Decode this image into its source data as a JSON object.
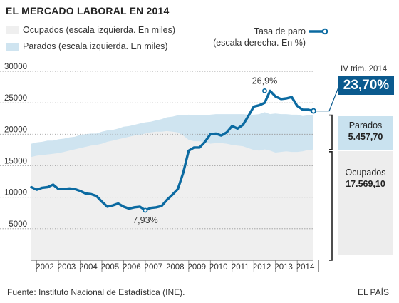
{
  "title": "EL MERCADO LABORAL EN 2014",
  "legend": {
    "employed": "Ocupados (escala izquierda. En miles)",
    "unemployed": "Parados (escala izquierda. En miles)",
    "rate_line1": "Tasa de paro",
    "rate_line2": "(escala derecha. En %)"
  },
  "colors": {
    "employed_fill": "#efefef",
    "unemployed_fill": "#cfe4f0",
    "rate_line": "#0b6aa1",
    "highlight": "#0b5a8e"
  },
  "latest": {
    "period": "IV trim. 2014",
    "rate": "23,70%",
    "unemployed_label": "Parados",
    "unemployed_value": "5.457,70",
    "employed_label": "Ocupados",
    "employed_value": "17.569,10"
  },
  "source": "Fuente: Instituto Nacional de Estadística (INE).",
  "brand": "EL PAÍS",
  "chart_data": {
    "type": "area",
    "x_tick_labels": [
      "2002",
      "2003",
      "2004",
      "2005",
      "2006",
      "2007",
      "2008",
      "2009",
      "2010",
      "2011",
      "2012",
      "2013",
      "2014"
    ],
    "y_left_ticks": [
      "5000",
      "10000",
      "15000",
      "20000",
      "25000",
      "30000"
    ],
    "ylim_left": [
      0,
      30000
    ],
    "rate_scale_note": "right scale not printed; the rate line is drawn against a 0–30 % scale",
    "ylim_right": [
      0,
      30
    ],
    "grid": true,
    "annotations": [
      {
        "text": "26,9%",
        "year": 2012.5,
        "value": 26.9
      },
      {
        "text": "7,93%",
        "year": 2007.0,
        "value": 7.93
      }
    ],
    "series": [
      {
        "name": "Ocupados",
        "kind": "area",
        "x": [
          2001.75,
          2002,
          2002.25,
          2002.5,
          2002.75,
          2003,
          2003.25,
          2003.5,
          2003.75,
          2004,
          2004.25,
          2004.5,
          2004.75,
          2005,
          2005.25,
          2005.5,
          2005.75,
          2006,
          2006.25,
          2006.5,
          2006.75,
          2007,
          2007.25,
          2007.5,
          2007.75,
          2008,
          2008.25,
          2008.5,
          2008.75,
          2009,
          2009.25,
          2009.5,
          2009.75,
          2010,
          2010.25,
          2010.5,
          2010.75,
          2011,
          2011.25,
          2011.5,
          2011.75,
          2012,
          2012.25,
          2012.5,
          2012.75,
          2013,
          2013.25,
          2013.5,
          2013.75,
          2014,
          2014.25,
          2014.5,
          2014.75
        ],
        "values": [
          16400,
          16600,
          16700,
          16800,
          16900,
          17000,
          17200,
          17400,
          17600,
          17800,
          18000,
          18200,
          18300,
          18500,
          18800,
          19000,
          19200,
          19400,
          19600,
          19800,
          19900,
          20100,
          20300,
          20400,
          20400,
          20500,
          20400,
          20300,
          19800,
          19100,
          18900,
          18900,
          18700,
          18500,
          18600,
          18600,
          18500,
          18300,
          18200,
          18100,
          17800,
          17500,
          17400,
          17600,
          17400,
          17100,
          17200,
          17300,
          17200,
          17200,
          17300,
          17500,
          17569.1
        ]
      },
      {
        "name": "Parados",
        "kind": "stacked-area",
        "x": [
          2001.75,
          2002,
          2002.25,
          2002.5,
          2002.75,
          2003,
          2003.25,
          2003.5,
          2003.75,
          2004,
          2004.25,
          2004.5,
          2004.75,
          2005,
          2005.25,
          2005.5,
          2005.75,
          2006,
          2006.25,
          2006.5,
          2006.75,
          2007,
          2007.25,
          2007.5,
          2007.75,
          2008,
          2008.25,
          2008.5,
          2008.75,
          2009,
          2009.25,
          2009.5,
          2009.75,
          2010,
          2010.25,
          2010.5,
          2010.75,
          2011,
          2011.25,
          2011.5,
          2011.75,
          2012,
          2012.25,
          2012.5,
          2012.75,
          2013,
          2013.25,
          2013.5,
          2013.75,
          2014,
          2014.25,
          2014.5,
          2014.75
        ],
        "values": [
          2100,
          2100,
          2100,
          2200,
          2100,
          2200,
          2100,
          2100,
          2000,
          2100,
          2000,
          1900,
          1800,
          1900,
          1800,
          1700,
          1700,
          1800,
          1700,
          1700,
          1800,
          1800,
          1700,
          1800,
          2000,
          2200,
          2400,
          2700,
          3200,
          4000,
          4100,
          4100,
          4300,
          4600,
          4600,
          4600,
          4700,
          4900,
          5000,
          5100,
          5300,
          5600,
          5800,
          5900,
          5800,
          6200,
          6000,
          5900,
          5900,
          5900,
          5600,
          5500,
          5457.7
        ]
      },
      {
        "name": "Tasa de paro",
        "kind": "line",
        "x": [
          2001.75,
          2002,
          2002.25,
          2002.5,
          2002.75,
          2003,
          2003.25,
          2003.5,
          2003.75,
          2004,
          2004.25,
          2004.5,
          2004.75,
          2005,
          2005.25,
          2005.5,
          2005.75,
          2006,
          2006.25,
          2006.5,
          2006.75,
          2007,
          2007.25,
          2007.5,
          2007.75,
          2008,
          2008.25,
          2008.5,
          2008.75,
          2009,
          2009.25,
          2009.5,
          2009.75,
          2010,
          2010.25,
          2010.5,
          2010.75,
          2011,
          2011.25,
          2011.5,
          2011.75,
          2012,
          2012.25,
          2012.5,
          2012.75,
          2013,
          2013.25,
          2013.5,
          2013.75,
          2014,
          2014.25,
          2014.5,
          2014.75
        ],
        "values": [
          11.6,
          11.2,
          11.5,
          11.6,
          12.0,
          11.3,
          11.3,
          11.4,
          11.3,
          11.0,
          10.6,
          10.5,
          10.2,
          9.3,
          8.5,
          8.7,
          9.0,
          8.5,
          8.2,
          8.4,
          8.5,
          7.93,
          8.3,
          8.4,
          8.6,
          9.6,
          10.4,
          11.3,
          13.9,
          17.4,
          17.9,
          17.9,
          18.8,
          20.0,
          20.1,
          19.8,
          20.3,
          21.3,
          20.9,
          21.5,
          22.9,
          24.4,
          24.6,
          25.0,
          26.9,
          26.0,
          25.6,
          25.7,
          25.9,
          24.5,
          23.9,
          23.9,
          23.7
        ]
      }
    ]
  }
}
